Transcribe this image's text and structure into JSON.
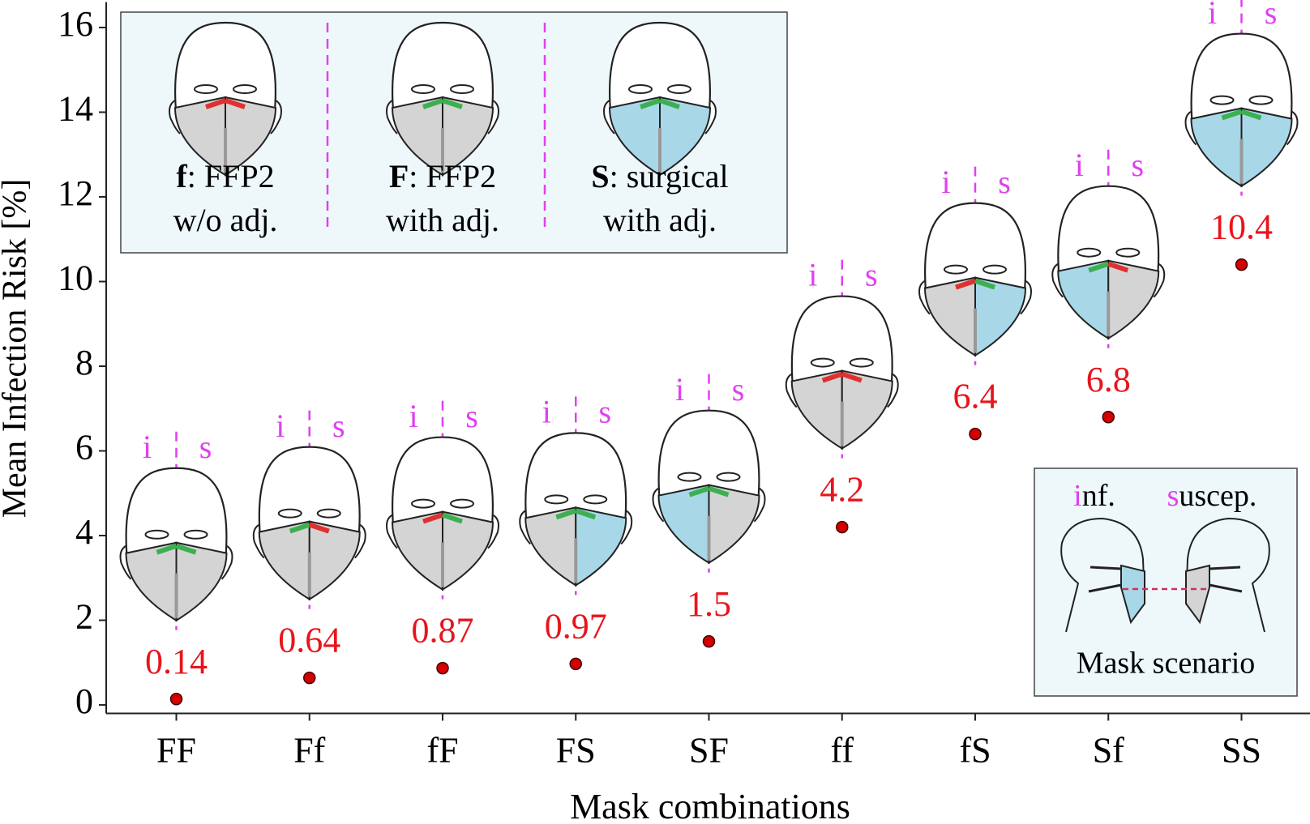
{
  "chart_data": {
    "type": "dot",
    "ylabel": "Mean Infection Risk [%]",
    "xlabel": "Mask combinations",
    "categories": [
      "FF",
      "Ff",
      "fF",
      "FS",
      "SF",
      "ff",
      "fS",
      "Sf",
      "SS"
    ],
    "values": [
      0.14,
      0.64,
      0.87,
      0.97,
      1.5,
      4.2,
      6.4,
      6.8,
      10.4
    ],
    "color": "#d40000",
    "label_color": "#e8141c",
    "ylim": [
      -0.2,
      16.6
    ],
    "yticks": [
      0,
      2,
      4,
      6,
      8,
      10,
      12,
      14,
      16
    ],
    "face_labels": {
      "infected": "i",
      "susceptible": "s"
    },
    "legend": [
      {
        "key": "f",
        "text": ": FFP2",
        "note": "w/o adj."
      },
      {
        "key": "F",
        "text": ": FFP2",
        "note": "with adj."
      },
      {
        "key": "S",
        "text": ": surgical",
        "note": "with adj."
      }
    ],
    "scenario": {
      "infected_rest": "nf.",
      "susceptible_rest": "uscep.",
      "title": "Mask scenario"
    }
  }
}
